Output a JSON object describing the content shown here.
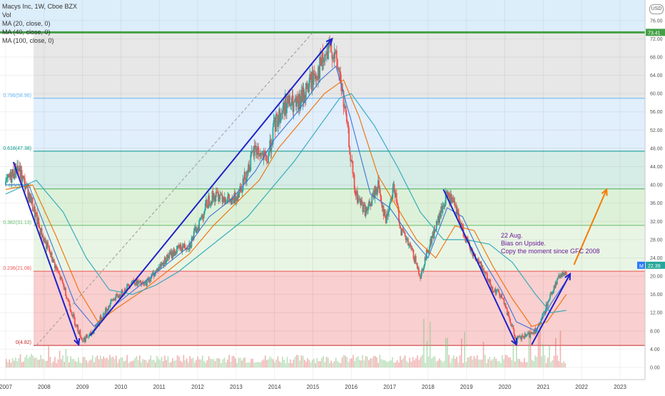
{
  "header": {
    "symbol_line": "Macys Inc, 1W, Cboe BZX",
    "vol_label": "Vol",
    "ma1": "MA (20, close, 0)",
    "ma2": "MA (40, close, 0)",
    "ma3": "MA (100, close, 0)"
  },
  "currency_badge": "USD",
  "annotation": {
    "line1": "22 Aug.",
    "line2": "Bias on Upside.",
    "line3": "Copy the moment since GFC 2008"
  },
  "chart_data": {
    "type": "candlestick",
    "x_axis": {
      "labels": [
        "2007",
        "2008",
        "2009",
        "2010",
        "2011",
        "2012",
        "2013",
        "2014",
        "2015",
        "2016",
        "2017",
        "2018",
        "2019",
        "2020",
        "2021",
        "2022",
        "2023"
      ]
    },
    "y_axis": {
      "ticks": [
        0.0,
        4.0,
        8.0,
        12.0,
        16.0,
        20.0,
        24.0,
        28.0,
        32.0,
        36.0,
        40.0,
        44.0,
        48.0,
        52.0,
        56.0,
        60.0,
        64.0,
        68.0,
        72.0,
        76.0
      ],
      "range": [
        -2.5,
        80.5
      ]
    },
    "price_labels": {
      "high": "73.41",
      "current": "22.39",
      "current_marker": "M"
    },
    "fib_levels": [
      {
        "label": "0(4.82)",
        "value": 4.82,
        "color": "#c62828"
      },
      {
        "label": "0.236(21.08)",
        "value": 21.08,
        "color": "#ef5350"
      },
      {
        "label": "0.382(31.13)",
        "value": 31.13,
        "color": "#66bb6a"
      },
      {
        "label": "0.5(39.12)",
        "value": 39.12,
        "color": "#4caf50"
      },
      {
        "label": "0.618(47.38)",
        "value": 47.38,
        "color": "#009688"
      },
      {
        "label": "0.786(58.96)",
        "value": 58.96,
        "color": "#64b5f6"
      },
      {
        "label": "1(73.41)",
        "value": 73.41,
        "color": "#43a047"
      }
    ],
    "price_series": [
      [
        "2007.0",
        40
      ],
      [
        "2007.3",
        44
      ],
      [
        "2007.6",
        38
      ],
      [
        "2007.9",
        30
      ],
      [
        "2008.2",
        24
      ],
      [
        "2008.5",
        18
      ],
      [
        "2008.8",
        10
      ],
      [
        "2009.0",
        6
      ],
      [
        "2009.2",
        7
      ],
      [
        "2009.5",
        11
      ],
      [
        "2009.8",
        15
      ],
      [
        "2010.0",
        16
      ],
      [
        "2010.3",
        19
      ],
      [
        "2010.6",
        18
      ],
      [
        "2010.9",
        21
      ],
      [
        "2011.2",
        24
      ],
      [
        "2011.5",
        26
      ],
      [
        "2011.8",
        27
      ],
      [
        "2012.0",
        31
      ],
      [
        "2012.3",
        37
      ],
      [
        "2012.6",
        38
      ],
      [
        "2012.9",
        36
      ],
      [
        "2013.2",
        41
      ],
      [
        "2013.5",
        48
      ],
      [
        "2013.8",
        45
      ],
      [
        "2014.0",
        53
      ],
      [
        "2014.3",
        58
      ],
      [
        "2014.6",
        57
      ],
      [
        "2014.9",
        62
      ],
      [
        "2015.2",
        66
      ],
      [
        "2015.5",
        70
      ],
      [
        "2015.7",
        64
      ],
      [
        "2015.9",
        52
      ],
      [
        "2016.1",
        38
      ],
      [
        "2016.4",
        34
      ],
      [
        "2016.7",
        40
      ],
      [
        "2016.9",
        32
      ],
      [
        "2017.1",
        40
      ],
      [
        "2017.3",
        30
      ],
      [
        "2017.6",
        25
      ],
      [
        "2017.8",
        20
      ],
      [
        "2018.0",
        26
      ],
      [
        "2018.3",
        33
      ],
      [
        "2018.5",
        38
      ],
      [
        "2018.7",
        35
      ],
      [
        "2018.9",
        30
      ],
      [
        "2019.1",
        26
      ],
      [
        "2019.4",
        22
      ],
      [
        "2019.7",
        17
      ],
      [
        "2019.9",
        16
      ],
      [
        "2020.1",
        11
      ],
      [
        "2020.3",
        6
      ],
      [
        "2020.6",
        7
      ],
      [
        "2020.9",
        9
      ],
      [
        "2021.1",
        14
      ],
      [
        "2021.3",
        18
      ],
      [
        "2021.5",
        21
      ],
      [
        "2021.6",
        20
      ]
    ],
    "ma_series": [
      {
        "name": "MA (20, close, 0)",
        "color": "#3b6fd6",
        "points": [
          [
            "2007.0",
            40
          ],
          [
            "2007.6",
            40
          ],
          [
            "2008.2",
            27
          ],
          [
            "2008.8",
            14
          ],
          [
            "2009.3",
            9
          ],
          [
            "2009.9",
            14
          ],
          [
            "2010.5",
            18
          ],
          [
            "2011.1",
            22
          ],
          [
            "2011.7",
            26
          ],
          [
            "2012.3",
            33
          ],
          [
            "2012.9",
            37
          ],
          [
            "2013.5",
            43
          ],
          [
            "2014.0",
            50
          ],
          [
            "2014.6",
            56
          ],
          [
            "2015.2",
            63
          ],
          [
            "2015.6",
            66
          ],
          [
            "2016.0",
            54
          ],
          [
            "2016.5",
            38
          ],
          [
            "2017.0",
            35
          ],
          [
            "2017.5",
            29
          ],
          [
            "2018.0",
            24
          ],
          [
            "2018.5",
            35
          ],
          [
            "2018.9",
            33
          ],
          [
            "2019.4",
            24
          ],
          [
            "2019.9",
            17
          ],
          [
            "2020.3",
            10
          ],
          [
            "2020.8",
            8
          ],
          [
            "2021.2",
            14
          ],
          [
            "2021.6",
            19
          ]
        ]
      },
      {
        "name": "MA (40, close, 0)",
        "color": "#ef6c00",
        "points": [
          [
            "2007.0",
            39
          ],
          [
            "2007.7",
            40
          ],
          [
            "2008.3",
            29
          ],
          [
            "2008.9",
            17
          ],
          [
            "2009.4",
            10
          ],
          [
            "2009.9",
            13
          ],
          [
            "2010.6",
            17
          ],
          [
            "2011.2",
            21
          ],
          [
            "2011.8",
            25
          ],
          [
            "2012.4",
            31
          ],
          [
            "2013.0",
            36
          ],
          [
            "2013.6",
            41
          ],
          [
            "2014.1",
            48
          ],
          [
            "2014.7",
            54
          ],
          [
            "2015.3",
            60
          ],
          [
            "2015.8",
            63
          ],
          [
            "2016.2",
            55
          ],
          [
            "2016.7",
            42
          ],
          [
            "2017.2",
            35
          ],
          [
            "2017.7",
            28
          ],
          [
            "2018.2",
            24
          ],
          [
            "2018.7",
            31
          ],
          [
            "2019.2",
            30
          ],
          [
            "2019.7",
            22
          ],
          [
            "2020.2",
            15
          ],
          [
            "2020.7",
            9
          ],
          [
            "2021.1",
            10
          ],
          [
            "2021.6",
            16
          ]
        ]
      },
      {
        "name": "MA (100, close, 0)",
        "color": "#26a6b8",
        "points": [
          [
            "2007.0",
            38
          ],
          [
            "2007.8",
            41
          ],
          [
            "2008.5",
            34
          ],
          [
            "2009.1",
            24
          ],
          [
            "2009.7",
            17
          ],
          [
            "2010.3",
            16
          ],
          [
            "2010.9",
            18
          ],
          [
            "2011.5",
            21
          ],
          [
            "2012.1",
            25
          ],
          [
            "2012.7",
            29
          ],
          [
            "2013.3",
            33
          ],
          [
            "2013.9",
            39
          ],
          [
            "2014.5",
            45
          ],
          [
            "2015.1",
            52
          ],
          [
            "2015.7",
            59
          ],
          [
            "2016.0",
            60
          ],
          [
            "2016.6",
            53
          ],
          [
            "2017.2",
            44
          ],
          [
            "2017.8",
            34
          ],
          [
            "2018.4",
            28
          ],
          [
            "2019.0",
            28
          ],
          [
            "2019.6",
            27
          ],
          [
            "2020.2",
            23
          ],
          [
            "2020.8",
            16
          ],
          [
            "2021.2",
            12
          ],
          [
            "2021.6",
            12.5
          ]
        ]
      }
    ],
    "trend_arrows": [
      {
        "color": "#1e22c9",
        "from": [
          "2007.2",
          45
        ],
        "to": [
          "2008.9",
          5
        ]
      },
      {
        "color": "#1e22c9",
        "from": [
          "2009.2",
          7
        ],
        "to": [
          "2015.5",
          72
        ]
      },
      {
        "color": "#1e22c9",
        "from": [
          "2018.4",
          39
        ],
        "to": [
          "2020.3",
          5
        ]
      },
      {
        "color": "#1e22c9",
        "from": [
          "2020.7",
          5
        ],
        "to": [
          "2021.7",
          20.5
        ]
      },
      {
        "color": "#f57c00",
        "from": [
          "2021.8",
          22.5
        ],
        "to": [
          "2022.65",
          39
        ]
      }
    ],
    "dashed_line": {
      "color": "#999999",
      "from": [
        "2007.8",
        4.82
      ],
      "to": [
        "2015.0",
        73.41
      ]
    }
  }
}
